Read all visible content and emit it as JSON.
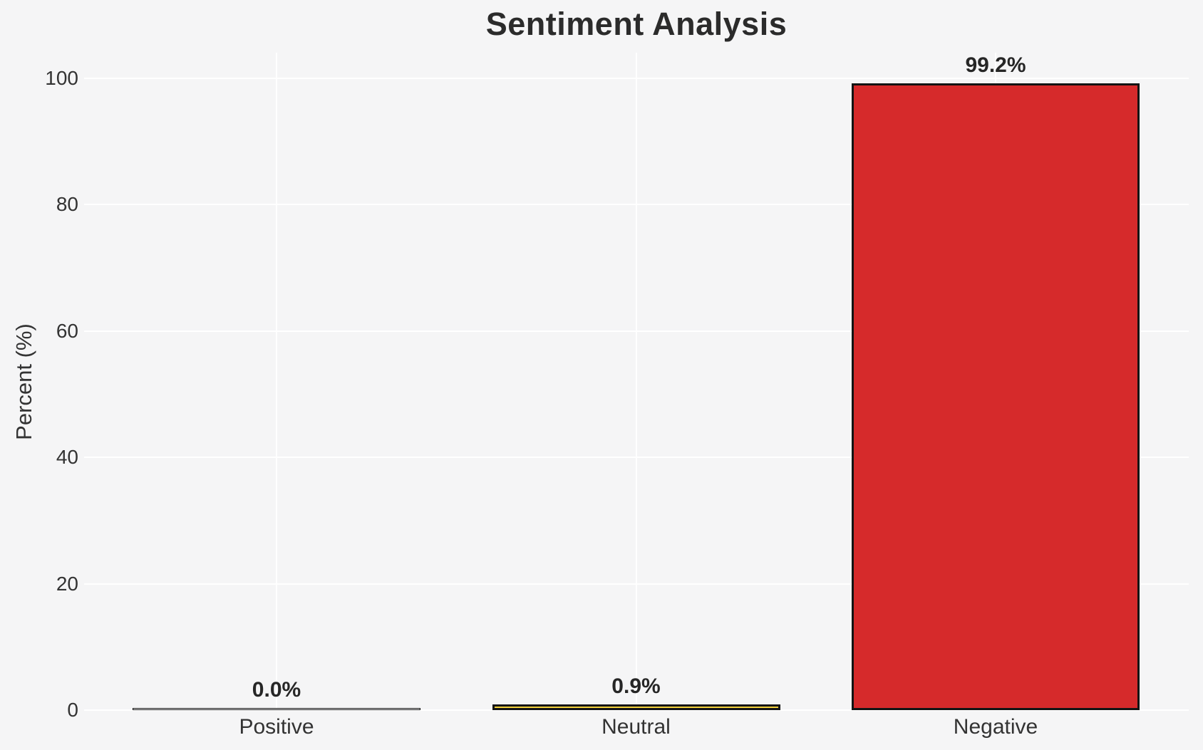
{
  "chart_data": {
    "type": "bar",
    "title": "Sentiment Analysis",
    "xlabel": "",
    "ylabel": "Percent (%)",
    "categories": [
      "Positive",
      "Neutral",
      "Negative"
    ],
    "values": [
      0.0,
      0.9,
      99.2
    ],
    "value_labels": [
      "0.0%",
      "0.9%",
      "99.2%"
    ],
    "bar_colors": [
      "#f5f5f6",
      "#f3d13c",
      "#d62a2b"
    ],
    "bar_edge_color": "#141414",
    "yticks": [
      0,
      20,
      40,
      60,
      80,
      100
    ],
    "ylim": [
      0,
      104
    ],
    "grid": true,
    "grid_color": "#ffffff",
    "background_color": "#f5f5f6",
    "title_color": "#2b2b2b",
    "label_color": "#333333",
    "value_label_color": "#262626",
    "legend_position": "none"
  }
}
